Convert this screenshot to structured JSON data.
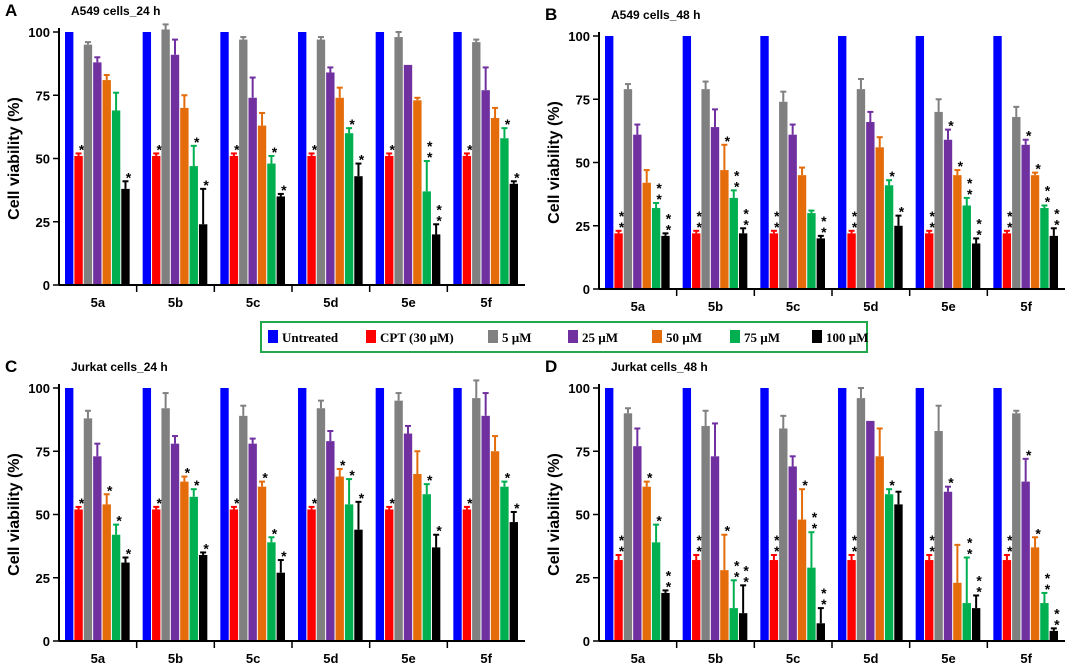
{
  "legend": [
    {
      "label": "Untreated",
      "color": "#0000FF"
    },
    {
      "label": "CPT (30 µM)",
      "color": "#FF0000"
    },
    {
      "label": "5 µM",
      "color": "#808080"
    },
    {
      "label": "25 µM",
      "color": "#7030A0"
    },
    {
      "label": "50 µM",
      "color": "#E46C0A"
    },
    {
      "label": "75 µM",
      "color": "#00B050"
    },
    {
      "label": "100 µM",
      "color": "#000000"
    }
  ],
  "star_symbol": "*",
  "chart_data": [
    {
      "panel": "A",
      "type": "bar",
      "title": "A549 cells_24 h",
      "ylabel": "Cell viability (%)",
      "xlabel": "",
      "ylim": [
        0,
        100
      ],
      "yticks": [
        0,
        25,
        50,
        75,
        100
      ],
      "categories": [
        "5a",
        "5b",
        "5c",
        "5d",
        "5e",
        "5f"
      ],
      "series": [
        {
          "name": "Untreated",
          "values": [
            100,
            100,
            100,
            100,
            100,
            100
          ],
          "errors": [
            0,
            0,
            0,
            0,
            0,
            0
          ],
          "stars": [
            0,
            0,
            0,
            0,
            0,
            0
          ]
        },
        {
          "name": "CPT (30 µM)",
          "values": [
            51,
            51,
            51,
            51,
            51,
            51
          ],
          "errors": [
            1,
            1,
            1,
            1,
            1,
            1
          ],
          "stars": [
            1,
            1,
            1,
            1,
            1,
            1
          ]
        },
        {
          "name": "5 µM",
          "values": [
            95,
            101,
            97,
            97,
            98,
            96
          ],
          "errors": [
            1,
            2,
            1,
            1,
            2,
            1
          ],
          "stars": [
            0,
            0,
            0,
            0,
            0,
            0
          ]
        },
        {
          "name": "25 µM",
          "values": [
            88,
            91,
            74,
            84,
            87,
            77
          ],
          "errors": [
            2,
            6,
            8,
            2,
            0,
            9
          ],
          "stars": [
            0,
            0,
            0,
            0,
            0,
            0
          ]
        },
        {
          "name": "50 µM",
          "values": [
            81,
            70,
            63,
            74,
            73,
            66
          ],
          "errors": [
            2,
            5,
            5,
            4,
            1,
            4
          ],
          "stars": [
            0,
            0,
            0,
            0,
            0,
            0
          ]
        },
        {
          "name": "75 µM",
          "values": [
            69,
            47,
            48,
            60,
            37,
            58
          ],
          "errors": [
            7,
            8,
            3,
            2,
            12,
            4
          ],
          "stars": [
            0,
            1,
            1,
            1,
            2,
            1
          ]
        },
        {
          "name": "100 µM",
          "values": [
            38,
            24,
            35,
            43,
            20,
            40
          ],
          "errors": [
            3,
            14,
            1,
            5,
            4,
            1
          ],
          "stars": [
            1,
            1,
            1,
            1,
            2,
            1
          ]
        }
      ]
    },
    {
      "panel": "B",
      "type": "bar",
      "title": "A549 cells_48 h",
      "ylabel": "Cell viability (%)",
      "xlabel": "",
      "ylim": [
        0,
        100
      ],
      "yticks": [
        0,
        25,
        50,
        75,
        100
      ],
      "categories": [
        "5a",
        "5b",
        "5c",
        "5d",
        "5e",
        "5f"
      ],
      "series": [
        {
          "name": "Untreated",
          "values": [
            100,
            100,
            100,
            100,
            100,
            100
          ],
          "errors": [
            0,
            0,
            0,
            0,
            0,
            0
          ],
          "stars": [
            0,
            0,
            0,
            0,
            0,
            0
          ]
        },
        {
          "name": "CPT (30 µM)",
          "values": [
            22,
            22,
            22,
            22,
            22,
            22
          ],
          "errors": [
            1,
            1,
            1,
            1,
            1,
            1
          ],
          "stars": [
            2,
            2,
            2,
            2,
            2,
            2
          ]
        },
        {
          "name": "5 µM",
          "values": [
            79,
            79,
            74,
            79,
            70,
            68
          ],
          "errors": [
            2,
            3,
            4,
            4,
            5,
            4
          ],
          "stars": [
            0,
            0,
            0,
            0,
            0,
            0
          ]
        },
        {
          "name": "25 µM",
          "values": [
            61,
            64,
            61,
            66,
            59,
            57
          ],
          "errors": [
            4,
            7,
            4,
            4,
            4,
            2
          ],
          "stars": [
            0,
            0,
            0,
            0,
            1,
            1
          ]
        },
        {
          "name": "50 µM",
          "values": [
            42,
            47,
            45,
            56,
            45,
            45
          ],
          "errors": [
            5,
            10,
            3,
            4,
            2,
            1
          ],
          "stars": [
            0,
            1,
            0,
            0,
            1,
            1
          ]
        },
        {
          "name": "75 µM",
          "values": [
            32,
            36,
            30,
            41,
            33,
            32
          ],
          "errors": [
            2,
            3,
            1,
            2,
            3,
            1
          ],
          "stars": [
            2,
            2,
            0,
            1,
            2,
            2
          ]
        },
        {
          "name": "100 µM",
          "values": [
            21,
            22,
            20,
            25,
            18,
            21
          ],
          "errors": [
            1,
            2,
            1,
            4,
            2,
            3
          ],
          "stars": [
            2,
            2,
            2,
            1,
            2,
            2
          ]
        }
      ]
    },
    {
      "panel": "C",
      "type": "bar",
      "title": "Jurkat cells_24 h",
      "ylabel": "Cell viability (%)",
      "xlabel": "",
      "ylim": [
        0,
        100
      ],
      "yticks": [
        0,
        25,
        50,
        75,
        100
      ],
      "categories": [
        "5a",
        "5b",
        "5c",
        "5d",
        "5e",
        "5f"
      ],
      "series": [
        {
          "name": "Untreated",
          "values": [
            100,
            100,
            100,
            100,
            100,
            100
          ],
          "errors": [
            0,
            0,
            0,
            0,
            0,
            0
          ],
          "stars": [
            0,
            0,
            0,
            0,
            0,
            0
          ]
        },
        {
          "name": "CPT (30 µM)",
          "values": [
            52,
            52,
            52,
            52,
            52,
            52
          ],
          "errors": [
            1,
            1,
            1,
            1,
            1,
            1
          ],
          "stars": [
            1,
            1,
            1,
            1,
            1,
            1
          ]
        },
        {
          "name": "5 µM",
          "values": [
            88,
            92,
            89,
            92,
            95,
            96
          ],
          "errors": [
            3,
            6,
            4,
            3,
            3,
            7
          ],
          "stars": [
            0,
            0,
            0,
            0,
            0,
            0
          ]
        },
        {
          "name": "25 µM",
          "values": [
            73,
            78,
            78,
            79,
            82,
            89
          ],
          "errors": [
            5,
            3,
            2,
            4,
            3,
            9
          ],
          "stars": [
            0,
            0,
            0,
            0,
            0,
            0
          ]
        },
        {
          "name": "50 µM",
          "values": [
            54,
            63,
            61,
            65,
            66,
            75
          ],
          "errors": [
            4,
            2,
            2,
            3,
            9,
            6
          ],
          "stars": [
            1,
            1,
            1,
            1,
            0,
            0
          ]
        },
        {
          "name": "75 µM",
          "values": [
            42,
            57,
            39,
            54,
            58,
            61
          ],
          "errors": [
            4,
            3,
            2,
            10,
            4,
            2
          ],
          "stars": [
            1,
            1,
            1,
            1,
            1,
            1
          ]
        },
        {
          "name": "100 µM",
          "values": [
            31,
            34,
            27,
            44,
            37,
            47
          ],
          "errors": [
            2,
            1,
            5,
            11,
            5,
            4
          ],
          "stars": [
            1,
            1,
            1,
            1,
            1,
            1
          ]
        }
      ]
    },
    {
      "panel": "D",
      "type": "bar",
      "title": "Jurkat cells_48 h",
      "ylabel": "Cell viability (%)",
      "xlabel": "",
      "ylim": [
        0,
        100
      ],
      "yticks": [
        0,
        25,
        50,
        75,
        100
      ],
      "categories": [
        "5a",
        "5b",
        "5c",
        "5d",
        "5e",
        "5f"
      ],
      "series": [
        {
          "name": "Untreated",
          "values": [
            100,
            100,
            100,
            100,
            100,
            100
          ],
          "errors": [
            0,
            0,
            0,
            0,
            0,
            0
          ],
          "stars": [
            0,
            0,
            0,
            0,
            0,
            0
          ]
        },
        {
          "name": "CPT (30 µM)",
          "values": [
            32,
            32,
            32,
            32,
            32,
            32
          ],
          "errors": [
            2,
            2,
            2,
            2,
            2,
            2
          ],
          "stars": [
            2,
            2,
            2,
            2,
            2,
            2
          ]
        },
        {
          "name": "5 µM",
          "values": [
            90,
            85,
            84,
            96,
            83,
            90
          ],
          "errors": [
            2,
            6,
            5,
            4,
            10,
            1
          ],
          "stars": [
            0,
            0,
            0,
            0,
            0,
            0
          ]
        },
        {
          "name": "25 µM",
          "values": [
            77,
            73,
            69,
            87,
            59,
            63
          ],
          "errors": [
            7,
            13,
            4,
            0,
            2,
            9
          ],
          "stars": [
            0,
            0,
            0,
            0,
            1,
            1
          ]
        },
        {
          "name": "50 µM",
          "values": [
            61,
            28,
            48,
            73,
            23,
            37
          ],
          "errors": [
            2,
            14,
            12,
            11,
            15,
            4
          ],
          "stars": [
            1,
            1,
            1,
            0,
            0,
            1
          ]
        },
        {
          "name": "75 µM",
          "values": [
            39,
            13,
            29,
            58,
            15,
            15
          ],
          "errors": [
            7,
            11,
            14,
            2,
            18,
            4
          ],
          "stars": [
            1,
            2,
            2,
            1,
            2,
            2
          ]
        },
        {
          "name": "100 µM",
          "values": [
            19,
            11,
            7,
            54,
            13,
            4
          ],
          "errors": [
            1,
            11,
            6,
            5,
            5,
            1
          ],
          "stars": [
            2,
            2,
            2,
            0,
            2,
            2
          ]
        }
      ]
    }
  ]
}
